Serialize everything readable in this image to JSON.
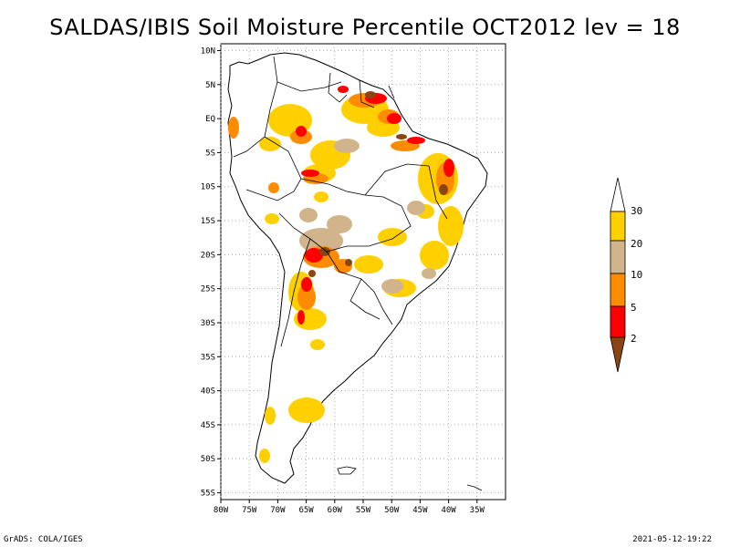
{
  "title": "SALDAS/IBIS Soil Moisture Percentile OCT2012 lev = 18",
  "footer": {
    "left": "GrADS: COLA/IGES",
    "right": "2021-05-12-19:22"
  },
  "map": {
    "lon_range": [
      -80,
      -30
    ],
    "lat_range": [
      -56,
      11
    ],
    "lat_ticks": [
      "10N",
      "5N",
      "EQ",
      "5S",
      "10S",
      "15S",
      "20S",
      "25S",
      "30S",
      "35S",
      "40S",
      "45S",
      "50S",
      "55S"
    ],
    "lon_ticks": [
      "80W",
      "75W",
      "70W",
      "65W",
      "60W",
      "55W",
      "50W",
      "45W",
      "40W",
      "35W"
    ]
  },
  "legend": {
    "labels": [
      "30",
      "20",
      "10",
      "5",
      "2"
    ],
    "colors": {
      "above30": "#ffffff",
      "p20_30": "#ffd000",
      "p10_20": "#d2b48c",
      "p5_10": "#ff8c00",
      "p2_5": "#ff0000",
      "below2": "#8b4513"
    }
  }
}
